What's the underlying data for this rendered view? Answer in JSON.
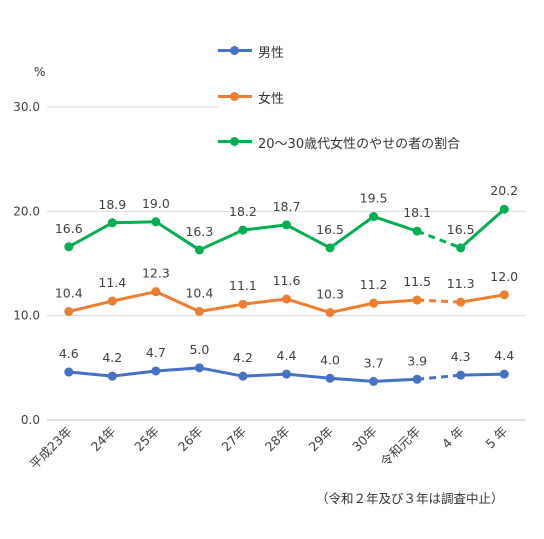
{
  "chart_data": {
    "type": "line",
    "unit_label": "%",
    "categories": [
      "平成23年",
      "24年",
      "25年",
      "26年",
      "27年",
      "28年",
      "29年",
      "30年",
      "令和元年",
      "4 年",
      "5 年"
    ],
    "ylim": [
      0,
      30
    ],
    "yticks": [
      "0.0",
      "10.0",
      "20.0",
      "30.0"
    ],
    "grid": true,
    "legend_position": "top-right",
    "series": [
      {
        "name": "男性",
        "color": "#4472C4",
        "values": [
          4.6,
          4.2,
          4.7,
          5.0,
          4.2,
          4.4,
          4.0,
          3.7,
          3.9,
          4.3,
          4.4
        ],
        "labels": [
          "4.6",
          "4.2",
          "4.7",
          "5.0",
          "4.2",
          "4.4",
          "4.0",
          "3.7",
          "3.9",
          "4.3",
          "4.4"
        ]
      },
      {
        "name": "女性",
        "color": "#ED7D31",
        "values": [
          10.4,
          11.4,
          12.3,
          10.4,
          11.1,
          11.6,
          10.3,
          11.2,
          11.5,
          11.3,
          12.0
        ],
        "labels": [
          "10.4",
          "11.4",
          "12.3",
          "10.4",
          "11.1",
          "11.6",
          "10.3",
          "11.2",
          "11.5",
          "11.3",
          "12.0"
        ]
      },
      {
        "name": "20～30歳代女性のやせの者の割合",
        "color": "#00B050",
        "values": [
          16.6,
          18.9,
          19.0,
          16.3,
          18.2,
          18.7,
          16.5,
          19.5,
          18.1,
          16.5,
          20.2
        ],
        "labels": [
          "16.6",
          "18.9",
          "19.0",
          "16.3",
          "18.2",
          "18.7",
          "16.5",
          "19.5",
          "18.1",
          "16.5",
          "20.2"
        ]
      }
    ],
    "gap_after_index": 8,
    "footnote": "（令和２年及び３年は調査中止）"
  }
}
